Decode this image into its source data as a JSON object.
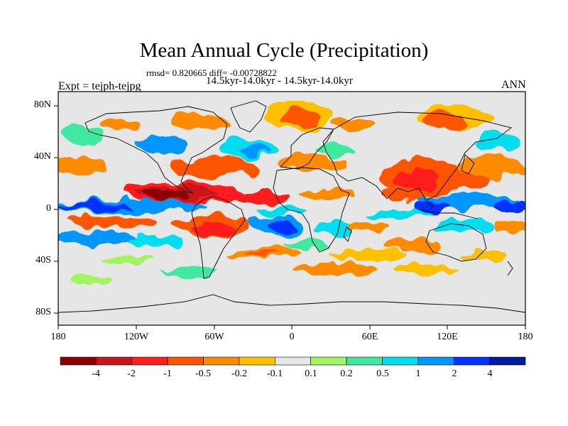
{
  "title": "Mean Annual Cycle (Precipitation)",
  "stats": "rmsd= 0.820665 diff= -0.00728822",
  "case_label": "14.5kyr-14.0kyr - 14.5kyr-14.0kyr",
  "experiment": "Expt = tejph-tejpg",
  "season": "ANN",
  "lat_labels": [
    "80N",
    "40N",
    "0",
    "40S",
    "80S"
  ],
  "lon_labels": [
    "180",
    "120W",
    "60W",
    "0",
    "60E",
    "120E",
    "180"
  ],
  "colorbar": {
    "colors": [
      "#8b0000",
      "#c8151b",
      "#ff1e1e",
      "#ff5500",
      "#ff8c00",
      "#ffc000",
      "#e6e6e6",
      "#a0f560",
      "#40e8a0",
      "#00ddee",
      "#0096ff",
      "#0032ff",
      "#001aa0"
    ],
    "labels": [
      "-4",
      "-2",
      "-1",
      "-0.5",
      "-0.2",
      "-0.1",
      "0.1",
      "0.2",
      "0.5",
      "1",
      "2",
      "4"
    ]
  }
}
